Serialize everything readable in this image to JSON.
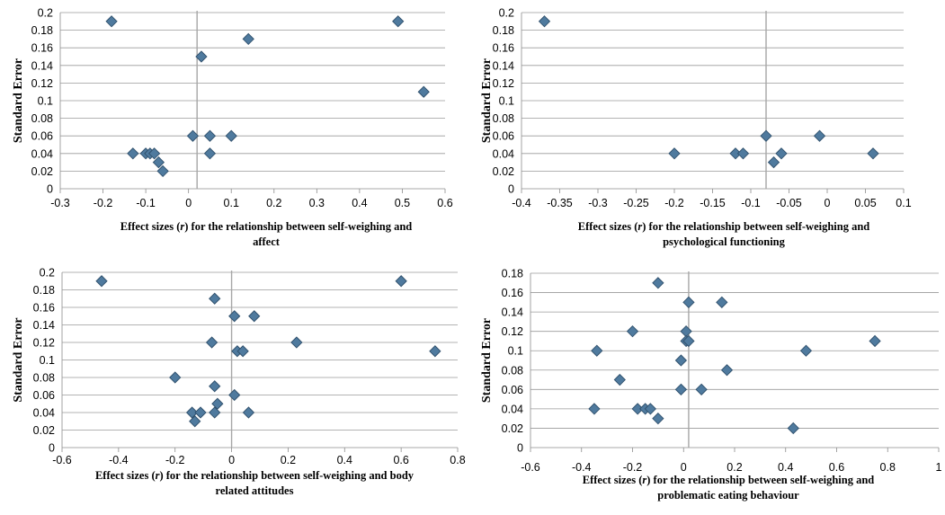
{
  "colors": {
    "marker_fill": "#4f7a9e",
    "marker_stroke": "#2f4f6b",
    "grid": "#9a9a9a",
    "axis": "#8c8c8c",
    "ref_line": "#a6a6a6"
  },
  "chart_data": [
    {
      "type": "scatter",
      "ylabel": "Standard Error",
      "xlabel": [
        "Effect sizes (",
        "r",
        ") for the relationship between self-weighing and",
        "affect"
      ],
      "xlim": [
        -0.3,
        0.6
      ],
      "ylim": [
        0,
        0.2
      ],
      "xticks": [
        "-0.3",
        "-0.2",
        "-0.1",
        "0",
        "0.1",
        "0.2",
        "0.3",
        "0.4",
        "0.5",
        "0.6"
      ],
      "yticks": [
        "0",
        "0.02",
        "0.04",
        "0.06",
        "0.08",
        "0.1",
        "0.12",
        "0.14",
        "0.16",
        "0.18",
        "0.2"
      ],
      "ref_x": 0.02,
      "points": [
        [
          -0.18,
          0.19
        ],
        [
          0.49,
          0.19
        ],
        [
          0.14,
          0.17
        ],
        [
          0.03,
          0.15
        ],
        [
          0.55,
          0.11
        ],
        [
          0.01,
          0.06
        ],
        [
          0.05,
          0.06
        ],
        [
          0.1,
          0.06
        ],
        [
          -0.13,
          0.04
        ],
        [
          -0.1,
          0.04
        ],
        [
          -0.09,
          0.04
        ],
        [
          -0.08,
          0.04
        ],
        [
          0.05,
          0.04
        ],
        [
          -0.07,
          0.03
        ],
        [
          -0.06,
          0.02
        ]
      ]
    },
    {
      "type": "scatter",
      "ylabel": "Standard Error",
      "xlabel": [
        "Effect sizes (",
        "r",
        ") for the relationship between self-weighing and",
        "psychological functioning"
      ],
      "xlim": [
        -0.4,
        0.1
      ],
      "ylim": [
        0,
        0.2
      ],
      "xticks": [
        "-0.4",
        "-0.35",
        "-0.3",
        "-0.25",
        "-0.2",
        "-0.15",
        "-0.1",
        "-0.05",
        "0",
        "0.05",
        "0.1"
      ],
      "yticks": [
        "0",
        "0.02",
        "0.04",
        "0.06",
        "0.08",
        "0.1",
        "0.12",
        "0.14",
        "0.16",
        "0.18",
        "0.2"
      ],
      "ref_x": -0.08,
      "points": [
        [
          -0.37,
          0.19
        ],
        [
          -0.08,
          0.06
        ],
        [
          -0.01,
          0.06
        ],
        [
          -0.2,
          0.04
        ],
        [
          -0.12,
          0.04
        ],
        [
          -0.11,
          0.04
        ],
        [
          -0.06,
          0.04
        ],
        [
          0.06,
          0.04
        ],
        [
          -0.07,
          0.03
        ]
      ]
    },
    {
      "type": "scatter",
      "ylabel": "Standard Error",
      "xlabel": [
        "Effect sizes (",
        "r",
        ") for the relationship between self-weighing and  body",
        "related attitudes"
      ],
      "xlim": [
        -0.6,
        0.8
      ],
      "ylim": [
        0,
        0.2
      ],
      "xticks": [
        "-0.6",
        "-0.4",
        "-0.2",
        "0",
        "0.2",
        "0.4",
        "0.6",
        "0.8"
      ],
      "yticks": [
        "0",
        "0.02",
        "0.04",
        "0.06",
        "0.08",
        "0.1",
        "0.12",
        "0.14",
        "0.16",
        "0.18",
        "0.2"
      ],
      "ref_x": 0.0,
      "points": [
        [
          -0.46,
          0.19
        ],
        [
          0.6,
          0.19
        ],
        [
          -0.06,
          0.17
        ],
        [
          0.01,
          0.15
        ],
        [
          0.08,
          0.15
        ],
        [
          -0.07,
          0.12
        ],
        [
          0.23,
          0.12
        ],
        [
          0.02,
          0.11
        ],
        [
          0.04,
          0.11
        ],
        [
          0.72,
          0.11
        ],
        [
          -0.2,
          0.08
        ],
        [
          -0.06,
          0.07
        ],
        [
          0.01,
          0.06
        ],
        [
          -0.05,
          0.05
        ],
        [
          -0.14,
          0.04
        ],
        [
          -0.11,
          0.04
        ],
        [
          -0.06,
          0.04
        ],
        [
          0.06,
          0.04
        ],
        [
          -0.13,
          0.03
        ]
      ]
    },
    {
      "type": "scatter",
      "ylabel": "Standard Error",
      "xlabel": [
        "Effect sizes (",
        "r",
        ") for the relationship between self-weighing and",
        "problematic eating behaviour"
      ],
      "xlim": [
        -0.6,
        1.0
      ],
      "ylim": [
        0,
        0.18
      ],
      "xticks": [
        "-0.6",
        "-0.4",
        "-0.2",
        "0",
        "0.2",
        "0.4",
        "0.6",
        "0.8",
        "1"
      ],
      "yticks": [
        "0",
        "0.02",
        "0.04",
        "0.06",
        "0.08",
        "0.1",
        "0.12",
        "0.14",
        "0.16",
        "0.18"
      ],
      "ref_x": 0.02,
      "points": [
        [
          -0.1,
          0.17
        ],
        [
          0.02,
          0.15
        ],
        [
          0.15,
          0.15
        ],
        [
          -0.2,
          0.12
        ],
        [
          0.01,
          0.12
        ],
        [
          0.01,
          0.11
        ],
        [
          0.02,
          0.11
        ],
        [
          0.75,
          0.11
        ],
        [
          -0.34,
          0.1
        ],
        [
          0.48,
          0.1
        ],
        [
          -0.01,
          0.09
        ],
        [
          0.17,
          0.08
        ],
        [
          -0.25,
          0.07
        ],
        [
          -0.01,
          0.06
        ],
        [
          0.07,
          0.06
        ],
        [
          -0.35,
          0.04
        ],
        [
          -0.18,
          0.04
        ],
        [
          -0.15,
          0.04
        ],
        [
          -0.13,
          0.04
        ],
        [
          -0.1,
          0.03
        ],
        [
          0.43,
          0.02
        ]
      ]
    }
  ]
}
